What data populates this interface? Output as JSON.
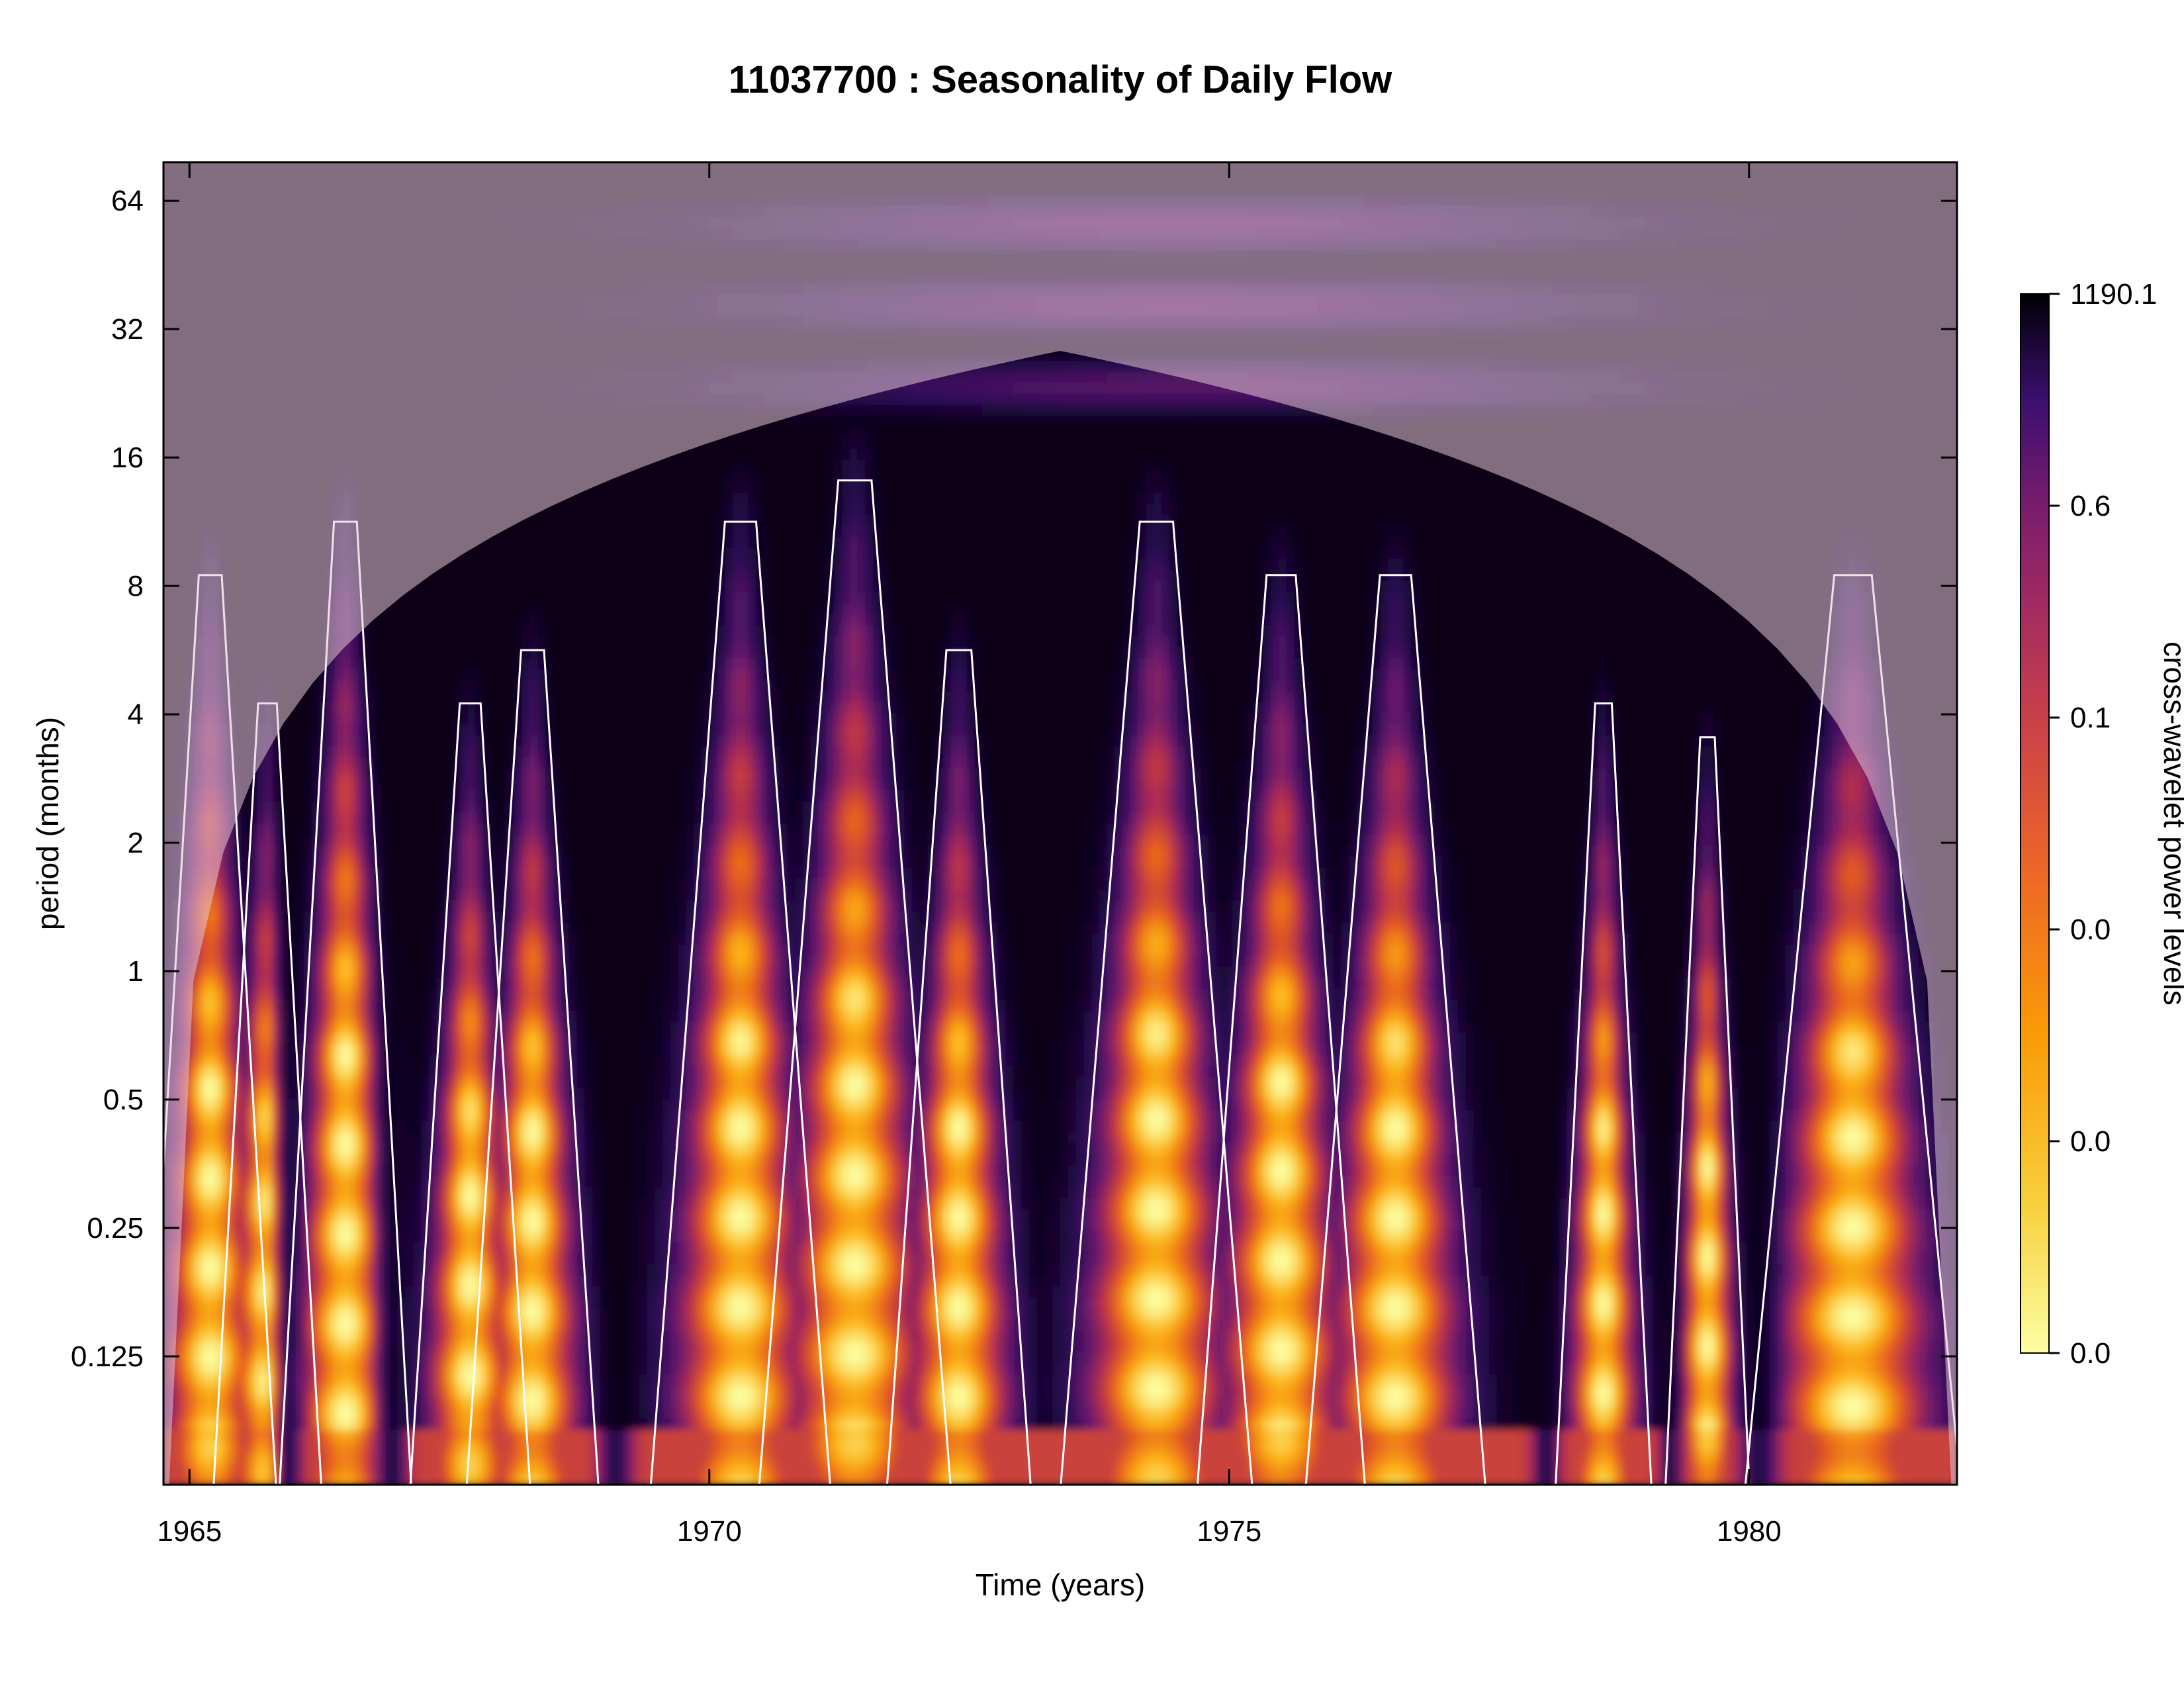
{
  "chart_data": {
    "type": "heatmap",
    "title": "11037700 : Seasonality of Daily Flow",
    "xlabel": "Time (years)",
    "ylabel": "period (months)",
    "xlim": [
      1964.75,
      1982.0
    ],
    "ylim_log2": [
      -4.0,
      6.3
    ],
    "x_ticks": [
      1965,
      1970,
      1975,
      1980
    ],
    "y_ticks": [
      {
        "value": 0.125,
        "label": "0.125"
      },
      {
        "value": 0.25,
        "label": "0.25"
      },
      {
        "value": 0.5,
        "label": "0.5"
      },
      {
        "value": 1,
        "label": "1"
      },
      {
        "value": 2,
        "label": "2"
      },
      {
        "value": 4,
        "label": "4"
      },
      {
        "value": 8,
        "label": "8"
      },
      {
        "value": 16,
        "label": "16"
      },
      {
        "value": 32,
        "label": "32"
      },
      {
        "value": 64,
        "label": "64"
      }
    ],
    "colorbar": {
      "label": "cross-wavelet power levels",
      "levels": [
        "1190.1",
        "0.6",
        "0.1",
        "0.0",
        "0.0",
        "0.0"
      ],
      "colors": [
        "#000004",
        "#2a0a55",
        "#6b1a6e",
        "#b42e4f",
        "#e8601c",
        "#fcb216",
        "#fcffa4"
      ]
    },
    "high_power_bands": [
      {
        "center": 1965.2,
        "width": 0.55,
        "top_period": 6.0
      },
      {
        "center": 1965.75,
        "width": 0.45,
        "top_period": 3.0
      },
      {
        "center": 1966.5,
        "width": 0.55,
        "top_period": 8.0
      },
      {
        "center": 1967.7,
        "width": 0.5,
        "top_period": 3.0
      },
      {
        "center": 1968.3,
        "width": 0.55,
        "top_period": 4.0
      },
      {
        "center": 1970.3,
        "width": 0.75,
        "top_period": 8.0
      },
      {
        "center": 1971.4,
        "width": 0.8,
        "top_period": 10.0
      },
      {
        "center": 1972.4,
        "width": 0.6,
        "top_period": 4.0
      },
      {
        "center": 1974.3,
        "width": 0.8,
        "top_period": 8.0
      },
      {
        "center": 1975.5,
        "width": 0.7,
        "top_period": 6.0
      },
      {
        "center": 1976.6,
        "width": 0.75,
        "top_period": 6.0
      },
      {
        "center": 1978.6,
        "width": 0.4,
        "top_period": 3.0
      },
      {
        "center": 1979.6,
        "width": 0.35,
        "top_period": 2.5
      },
      {
        "center": 1981.0,
        "width": 0.9,
        "top_period": 6.0
      }
    ],
    "low_power_gaps": [
      {
        "year": 1965.95,
        "width": 0.12
      },
      {
        "year": 1966.95,
        "width": 0.14
      },
      {
        "year": 1969.1,
        "width": 0.15
      },
      {
        "year": 1978.05,
        "width": 0.12
      },
      {
        "year": 1979.25,
        "width": 0.1
      },
      {
        "year": 1980.1,
        "width": 0.18
      }
    ],
    "low_period_band": {
      "from_period": 0.04,
      "to_period": 0.085
    },
    "grid": false,
    "legend": "right"
  }
}
